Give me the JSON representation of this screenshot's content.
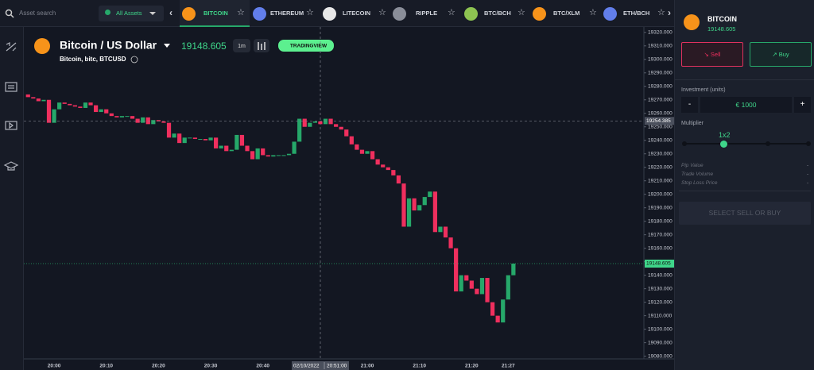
{
  "top_bar": {
    "search_placeholder": "Asset search",
    "filter": "All Assets",
    "tabs": [
      "BITCOIN",
      "ETHEREUM",
      "LITECOIN",
      "RIPPLE",
      "BTC/BCH",
      "BTC/XLM",
      "ETH/BCH"
    ]
  },
  "chart_header": {
    "title": "Bitcoin / US Dollar",
    "price": 19148.605,
    "interval": "1m",
    "badge": "TRADINGVIEW",
    "subtitle": "Bitcoin, bitc, BTCUSD"
  },
  "chart_data": {
    "type": "candlestick",
    "up_color": "#26a86a",
    "down_color": "#ef2f5e",
    "open": [
      19274,
      19272,
      19271,
      19269,
      19270,
      19253,
      19263,
      19268,
      19267,
      19266,
      19265,
      19264,
      19268,
      19266,
      19261,
      19263,
      19260,
      19258,
      19257,
      19258,
      19258,
      19256,
      19253,
      19257,
      19252,
      19255,
      19254,
      19253,
      19242,
      19245,
      19238,
      19242,
      19242,
      19241,
      19241,
      19240,
      19242,
      19234,
      19236,
      19232,
      19233,
      19244,
      19236,
      19232,
      19226,
      19234,
      19229,
      19228,
      19229,
      19229,
      19229,
      19230,
      19239,
      19256,
      19250,
      19253,
      19254,
      19252,
      19256,
      19252,
      19250,
      19248,
      19243,
      19237,
      19233,
      19230,
      19232,
      19226,
      19222,
      19220,
      19218,
      19214,
      19208,
      19176,
      19197,
      19188,
      19192,
      19198,
      19202,
      19172,
      19176,
      19168,
      19160,
      19128,
      19140,
      19136,
      19130,
      19126,
      19138,
      19120,
      19110,
      19105,
      19122,
      19140
    ],
    "close": [
      19272,
      19271,
      19269,
      19270,
      19253,
      19263,
      19268,
      19267,
      19266,
      19265,
      19264,
      19268,
      19266,
      19261,
      19263,
      19260,
      19258,
      19257,
      19258,
      19258,
      19256,
      19253,
      19257,
      19252,
      19255,
      19254,
      19253,
      19242,
      19245,
      19238,
      19242,
      19242,
      19241,
      19241,
      19240,
      19242,
      19234,
      19236,
      19232,
      19233,
      19244,
      19236,
      19232,
      19226,
      19234,
      19229,
      19228,
      19229,
      19229,
      19229,
      19230,
      19239,
      19256,
      19250,
      19253,
      19254,
      19252,
      19256,
      19252,
      19250,
      19248,
      19243,
      19237,
      19233,
      19230,
      19232,
      19226,
      19222,
      19220,
      19218,
      19214,
      19208,
      19176,
      19197,
      19188,
      19192,
      19198,
      19202,
      19172,
      19176,
      19168,
      19160,
      19128,
      19140,
      19136,
      19130,
      19126,
      19138,
      19120,
      19110,
      19105,
      19122,
      19140,
      19148.605
    ],
    "xlim": [
      -0.8,
      118
    ],
    "ylim": [
      19078,
      19324
    ],
    "xticks": [
      {
        "value": 5,
        "label": "20:00"
      },
      {
        "value": 15,
        "label": "20:10"
      },
      {
        "value": 25,
        "label": "20:20"
      },
      {
        "value": 35,
        "label": "20:30"
      },
      {
        "value": 45,
        "label": "20:40"
      },
      {
        "value": 65,
        "label": "21:00"
      },
      {
        "value": 75,
        "label": "21:10"
      },
      {
        "value": 85,
        "label": "21:20"
      },
      {
        "value": 92,
        "label": "21:27"
      }
    ],
    "yticks": [
      {
        "value": 19080,
        "label": "19080.000"
      },
      {
        "value": 19090,
        "label": "19090.000"
      },
      {
        "value": 19100,
        "label": "19100.000"
      },
      {
        "value": 19110,
        "label": "19110.000"
      },
      {
        "value": 19120,
        "label": "19120.000"
      },
      {
        "value": 19130,
        "label": "19130.000"
      },
      {
        "value": 19140,
        "label": "19140.000"
      },
      {
        "value": 19150,
        "label": "19150.000"
      },
      {
        "value": 19160,
        "label": "19160.000"
      },
      {
        "value": 19170,
        "label": "19170.000"
      },
      {
        "value": 19180,
        "label": "19180.000"
      },
      {
        "value": 19190,
        "label": "19190.000"
      },
      {
        "value": 19200,
        "label": "19200.000"
      },
      {
        "value": 19210,
        "label": "19210.000"
      },
      {
        "value": 19220,
        "label": "19220.000"
      },
      {
        "value": 19230,
        "label": "19230.000"
      },
      {
        "value": 19240,
        "label": "19240.000"
      },
      {
        "value": 19250,
        "label": "19250.000"
      },
      {
        "value": 19260,
        "label": "19260.000"
      },
      {
        "value": 19270,
        "label": "19270.000"
      },
      {
        "value": 19280,
        "label": "19280.000"
      },
      {
        "value": 19290,
        "label": "19290.000"
      },
      {
        "value": 19300,
        "label": "19300.000"
      },
      {
        "value": 19310,
        "label": "19310.000"
      },
      {
        "value": 19320,
        "label": "19320.000"
      }
    ],
    "crosshair_price": 19254.385,
    "crosshair_date": "02/10/2022",
    "crosshair_time": "20:51:00",
    "last_price": 19148.605
  },
  "trade_panel": {
    "asset": "BITCOIN",
    "price": "19148.605",
    "sell": "Sell",
    "buy": "Buy",
    "investment_label": "Investment (units)",
    "minus": "-",
    "amount": "€ 1000",
    "plus": "+",
    "multiplier_label": "Multiplier",
    "multiplier": "1x2",
    "stats": [
      {
        "label": "Pip Value",
        "value": "-"
      },
      {
        "label": "Trade Volume",
        "value": "-"
      },
      {
        "label": "Stop Loss Price",
        "value": "-"
      }
    ],
    "action": "SELECT SELL OR BUY"
  }
}
